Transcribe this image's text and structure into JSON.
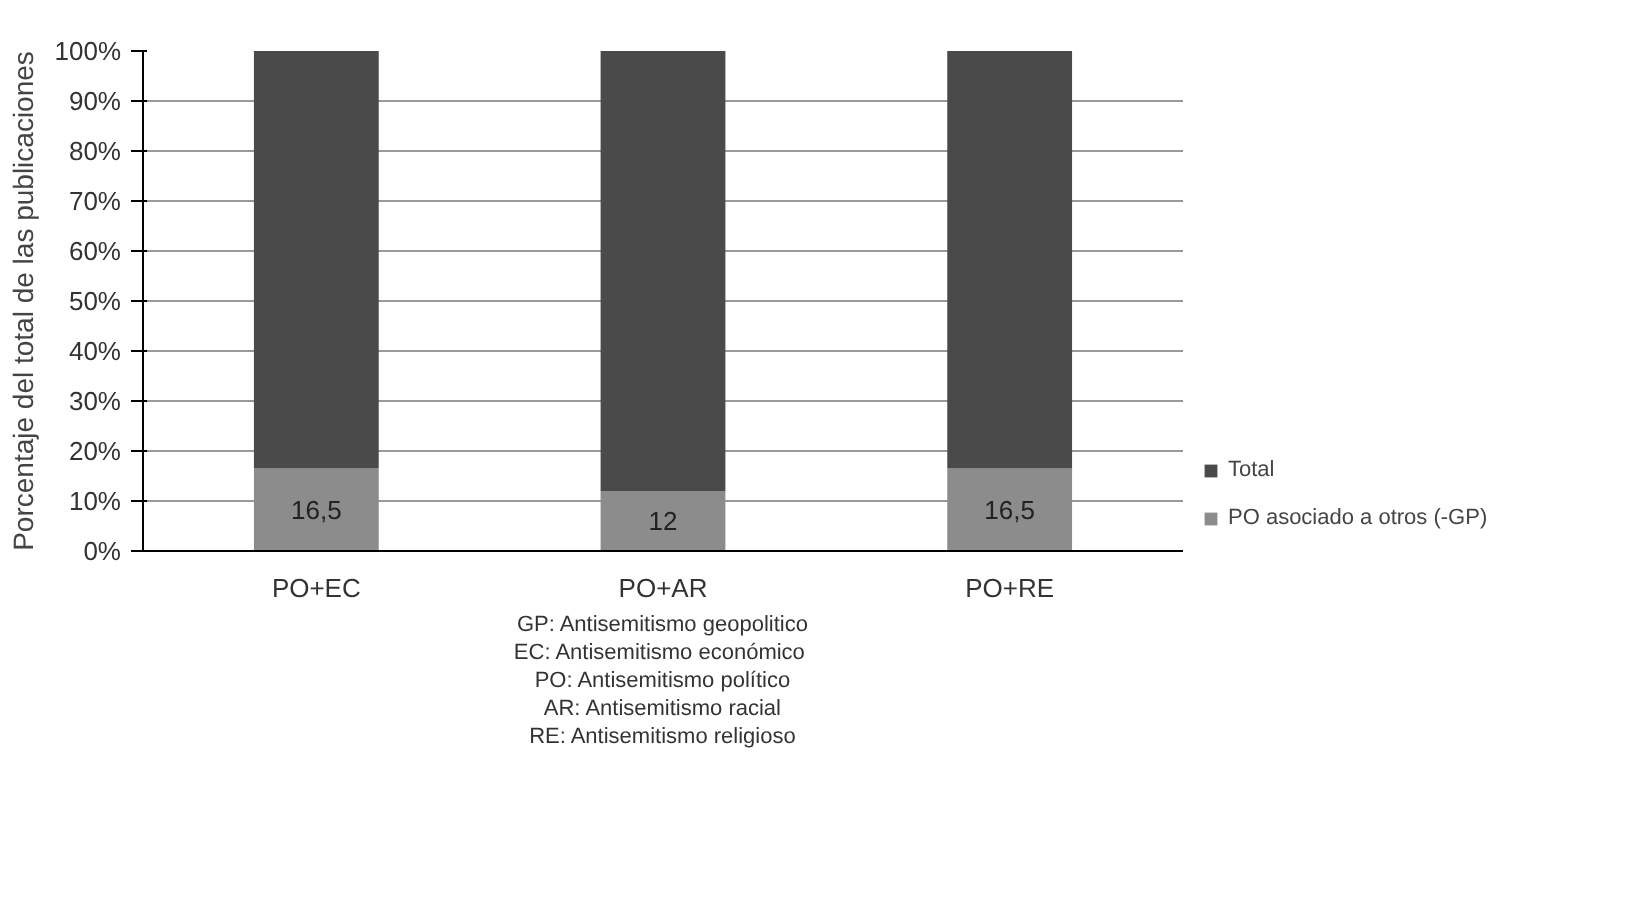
{
  "chart_data": {
    "type": "bar",
    "stacked": true,
    "ylabel": "Porcentaje del total de las publicaciones",
    "categories": [
      "PO+EC",
      "PO+AR",
      "PO+RE"
    ],
    "series": [
      {
        "name": "PO asociado a otros (-GP)",
        "color": "#8c8c8c",
        "values": [
          16.5,
          12,
          16.5
        ],
        "value_labels": [
          "16,5",
          "12",
          "16,5"
        ]
      },
      {
        "name": "Total",
        "color": "#4a4a4a",
        "values": [
          83.5,
          88,
          83.5
        ]
      }
    ],
    "ylim": [
      0,
      100
    ],
    "yticks": [
      {
        "value": 0,
        "label": "0%"
      },
      {
        "value": 10,
        "label": "10%"
      },
      {
        "value": 20,
        "label": "20%"
      },
      {
        "value": 30,
        "label": "30%"
      },
      {
        "value": 40,
        "label": "40%"
      },
      {
        "value": 50,
        "label": "50%"
      },
      {
        "value": 60,
        "label": "60%"
      },
      {
        "value": 70,
        "label": "70%"
      },
      {
        "value": 80,
        "label": "80%"
      },
      {
        "value": 90,
        "label": "90%"
      },
      {
        "value": 100,
        "label": "100%"
      }
    ],
    "grid": "y",
    "legend": "right",
    "annotations": [
      "GP: Antisemitismo geopolitico",
      "EC:  Antisemitismo económico",
      "PO: Antisemitismo político",
      "AR: Antisemitismo racial",
      "RE: Antisemitismo religioso"
    ]
  }
}
